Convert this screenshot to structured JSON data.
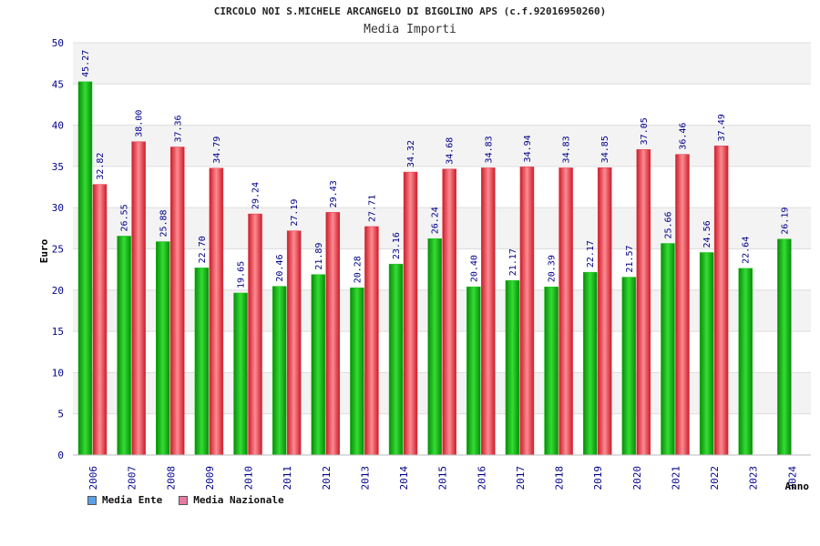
{
  "title": "CIRCOLO NOI S.MICHELE ARCANGELO DI BIGOLINO APS (c.f.92016950260)",
  "subtitle": "Media Importi",
  "colors": {
    "ente": "#19c219",
    "nazionale": "#e8303c",
    "legend_ente": "#5aa0e6",
    "legend_nazionale": "#e87aa0"
  },
  "legend": [
    {
      "label": "Media Ente"
    },
    {
      "label": "Media Nazionale"
    }
  ],
  "chart_data": {
    "type": "bar",
    "title": "Media Importi",
    "xlabel": "Anno",
    "ylabel": "Euro",
    "ylim": [
      0,
      50
    ],
    "yticks": [
      0,
      5,
      10,
      15,
      20,
      25,
      30,
      35,
      40,
      45,
      50
    ],
    "grid": true,
    "legend_position": "bottom-left",
    "categories": [
      "2006",
      "2007",
      "2008",
      "2009",
      "2010",
      "2011",
      "2012",
      "2013",
      "2014",
      "2015",
      "2016",
      "2017",
      "2018",
      "2019",
      "2020",
      "2021",
      "2022",
      "2023",
      "2024"
    ],
    "series": [
      {
        "name": "Media Ente",
        "values": [
          45.27,
          26.55,
          25.88,
          22.7,
          19.65,
          20.46,
          21.89,
          20.28,
          23.16,
          26.24,
          20.4,
          21.17,
          20.39,
          22.17,
          21.57,
          25.66,
          24.56,
          22.64,
          26.19
        ],
        "labels": [
          "45.27",
          "26.55",
          "25.88",
          "22.70",
          "19.65",
          "20.46",
          "21.89",
          "20.28",
          "23.16",
          "26.24",
          "20.40",
          "21.17",
          "20.39",
          "22.17",
          "21.57",
          "25.66",
          "24.56",
          "22.64",
          "26.19"
        ]
      },
      {
        "name": "Media Nazionale",
        "values": [
          32.82,
          38.0,
          37.36,
          34.79,
          29.24,
          27.19,
          29.43,
          27.71,
          34.32,
          34.68,
          34.83,
          34.94,
          34.83,
          34.85,
          37.05,
          36.46,
          37.49,
          null,
          null
        ],
        "labels": [
          "32.82",
          "38.00",
          "37.36",
          "34.79",
          "29.24",
          "27.19",
          "29.43",
          "27.71",
          "34.32",
          "34.68",
          "34.83",
          "34.94",
          "34.83",
          "34.85",
          "37.05",
          "36.46",
          "37.49",
          "",
          ""
        ]
      }
    ]
  }
}
